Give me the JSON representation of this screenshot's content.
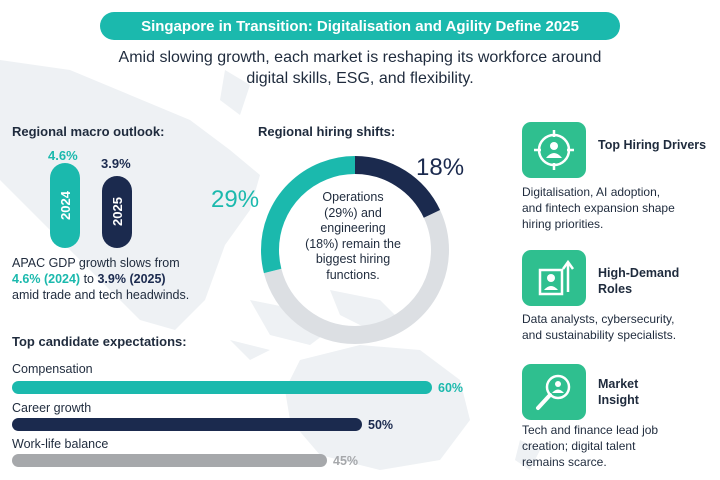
{
  "header": {
    "title": "Singapore in Transition: Digitalisation and Agility Define 2025",
    "subtitle_line1": "Amid slowing growth, each market is reshaping its workforce around",
    "subtitle_line2": "digital skills, ESG, and flexibility."
  },
  "macro": {
    "heading": "Regional macro outlook:",
    "bars": [
      {
        "year": "2024",
        "label": "4.6%",
        "value": 4.6,
        "color": "#1bb9ad"
      },
      {
        "year": "2025",
        "label": "3.9%",
        "value": 3.9,
        "color": "#1b2a4e"
      }
    ],
    "text_part1": "APAC GDP growth slows from",
    "text_bold1": "4.6% (2024)",
    "text_part2": " to ",
    "text_bold2": "3.9% (2025)",
    "text_part3": "amid trade and tech headwinds."
  },
  "hiring": {
    "heading": "Regional hiring shifts:",
    "center_line1": "Operations",
    "center_line2": "(29%) and",
    "center_line3": "engineering",
    "center_line4": "(18%) remain the",
    "center_line5": "biggest hiring",
    "center_line6": "functions."
  },
  "expectations": {
    "heading": "Top candidate expectations:"
  },
  "chart_data": [
    {
      "type": "pie",
      "title": "Regional hiring shifts:",
      "slices": [
        {
          "name": "Operations",
          "value": 29,
          "label": "29%",
          "color": "#1bb9ad"
        },
        {
          "name": "Engineering",
          "value": 18,
          "label": "18%",
          "color": "#1b2a4e"
        },
        {
          "name": "",
          "value": 53,
          "label": "",
          "color": "#dcdfe3"
        }
      ]
    },
    {
      "type": "bar",
      "title": "Top candidate expectations:",
      "categories": [
        "Compensation",
        "Career growth",
        "Work-life balance"
      ],
      "values": [
        60,
        50,
        45
      ],
      "value_labels": [
        "60%",
        "50%",
        "45%"
      ],
      "colors": [
        "#1bb9ad",
        "#1b2a4e",
        "#a6a8ab"
      ],
      "xlim": [
        0,
        100
      ]
    }
  ],
  "cards": [
    {
      "icon": "target-person-icon",
      "title": "Top Hiring Drivers",
      "text_line1": "Digitalisation, AI adoption,",
      "text_line2": "and fintech expansion shape",
      "text_line3": "hiring priorities."
    },
    {
      "icon": "growth-person-icon",
      "title_line1": "High-Demand",
      "title_line2": "Roles",
      "text_line1": "Data analysts, cybersecurity,",
      "text_line2": "and sustainability specialists.",
      "text_line3": ""
    },
    {
      "icon": "magnifier-person-icon",
      "title_line1": "Market",
      "title_line2": "Insight",
      "text_line1": "Tech and finance lead job",
      "text_line2": "creation; digital talent",
      "text_line3": "remains scarce."
    }
  ]
}
